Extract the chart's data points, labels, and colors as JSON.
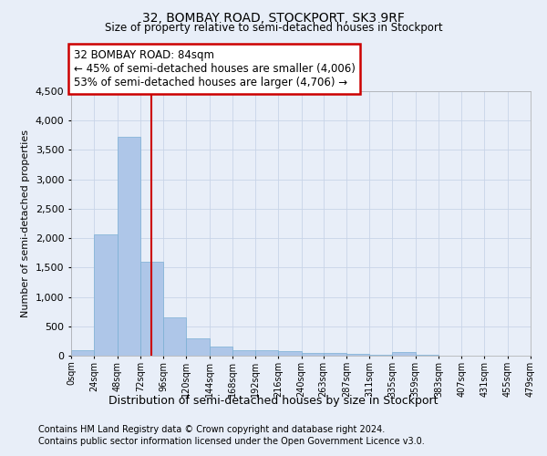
{
  "title": "32, BOMBAY ROAD, STOCKPORT, SK3 9RF",
  "subtitle": "Size of property relative to semi-detached houses in Stockport",
  "xlabel": "Distribution of semi-detached houses by size in Stockport",
  "ylabel": "Number of semi-detached properties",
  "footnote1": "Contains HM Land Registry data © Crown copyright and database right 2024.",
  "footnote2": "Contains public sector information licensed under the Open Government Licence v3.0.",
  "annotation_title": "32 BOMBAY ROAD: 84sqm",
  "annotation_line1": "← 45% of semi-detached houses are smaller (4,006)",
  "annotation_line2": "53% of semi-detached houses are larger (4,706) →",
  "property_size": 84,
  "bin_edges": [
    0,
    24,
    48,
    72,
    96,
    120,
    144,
    168,
    192,
    216,
    240,
    263,
    287,
    311,
    335,
    359,
    383,
    407,
    431,
    455,
    479
  ],
  "bar_heights": [
    100,
    2060,
    3720,
    1600,
    650,
    290,
    160,
    100,
    90,
    70,
    50,
    40,
    30,
    20,
    55,
    20,
    0,
    0,
    0,
    0
  ],
  "bar_color": "#aec6e8",
  "bar_edge_color": "#7aafd4",
  "grid_color": "#c8d4e8",
  "annotation_box_color": "#ffffff",
  "annotation_box_edge": "#cc0000",
  "vline_color": "#cc0000",
  "ylim": [
    0,
    4500
  ],
  "yticks": [
    0,
    500,
    1000,
    1500,
    2000,
    2500,
    3000,
    3500,
    4000,
    4500
  ],
  "bg_color": "#e8eef8",
  "plot_bg_color": "#e8eef8"
}
